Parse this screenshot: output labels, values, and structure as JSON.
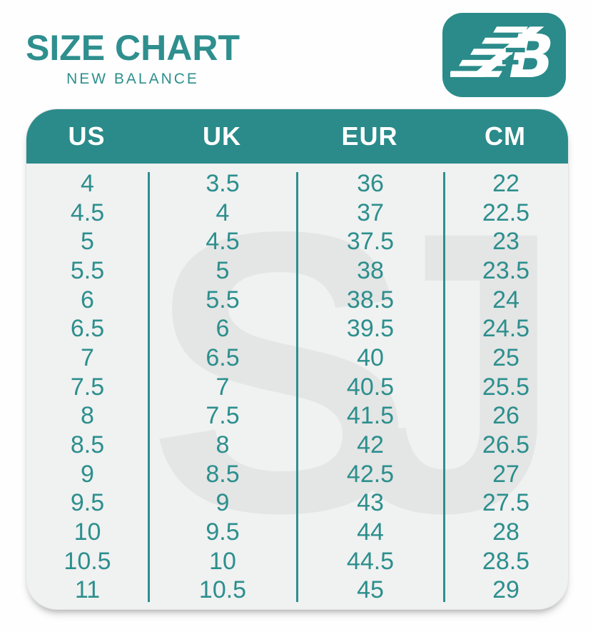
{
  "header": {
    "title": "SIZE CHART",
    "subtitle": "NEW BALANCE",
    "logo_letters": "NB"
  },
  "colors": {
    "teal": "#2a8b8a",
    "teal_text": "#2e8f8e",
    "card_background": "#f0f1f1",
    "header_text": "#ffffff",
    "watermark_gray": "#e4e5e5"
  },
  "watermark": "SJ",
  "table": {
    "headers": [
      "US",
      "UK",
      "EUR",
      "CM"
    ],
    "rows": [
      [
        "4",
        "3.5",
        "36",
        "22"
      ],
      [
        "4.5",
        "4",
        "37",
        "22.5"
      ],
      [
        "5",
        "4.5",
        "37.5",
        "23"
      ],
      [
        "5.5",
        "5",
        "38",
        "23.5"
      ],
      [
        "6",
        "5.5",
        "38.5",
        "24"
      ],
      [
        "6.5",
        "6",
        "39.5",
        "24.5"
      ],
      [
        "7",
        "6.5",
        "40",
        "25"
      ],
      [
        "7.5",
        "7",
        "40.5",
        "25.5"
      ],
      [
        "8",
        "7.5",
        "41.5",
        "26"
      ],
      [
        "8.5",
        "8",
        "42",
        "26.5"
      ],
      [
        "9",
        "8.5",
        "42.5",
        "27"
      ],
      [
        "9.5",
        "9",
        "43",
        "27.5"
      ],
      [
        "10",
        "9.5",
        "44",
        "28"
      ],
      [
        "10.5",
        "10",
        "44.5",
        "28.5"
      ],
      [
        "11",
        "10.5",
        "45",
        "29"
      ]
    ]
  },
  "chart_data": {
    "type": "table",
    "title": "SIZE CHART",
    "subtitle": "NEW BALANCE",
    "columns": [
      "US",
      "UK",
      "EUR",
      "CM"
    ],
    "rows": [
      [
        "4",
        "3.5",
        "36",
        "22"
      ],
      [
        "4.5",
        "4",
        "37",
        "22.5"
      ],
      [
        "5",
        "4.5",
        "37.5",
        "23"
      ],
      [
        "5.5",
        "5",
        "38",
        "23.5"
      ],
      [
        "6",
        "5.5",
        "38.5",
        "24"
      ],
      [
        "6.5",
        "6",
        "39.5",
        "24.5"
      ],
      [
        "7",
        "6.5",
        "40",
        "25"
      ],
      [
        "7.5",
        "7",
        "40.5",
        "25.5"
      ],
      [
        "8",
        "7.5",
        "41.5",
        "26"
      ],
      [
        "8.5",
        "8",
        "42",
        "26.5"
      ],
      [
        "9",
        "8.5",
        "42.5",
        "27"
      ],
      [
        "9.5",
        "9",
        "43",
        "27.5"
      ],
      [
        "10",
        "9.5",
        "44",
        "28"
      ],
      [
        "10.5",
        "10",
        "44.5",
        "28.5"
      ],
      [
        "11",
        "10.5",
        "45",
        "29"
      ]
    ]
  }
}
